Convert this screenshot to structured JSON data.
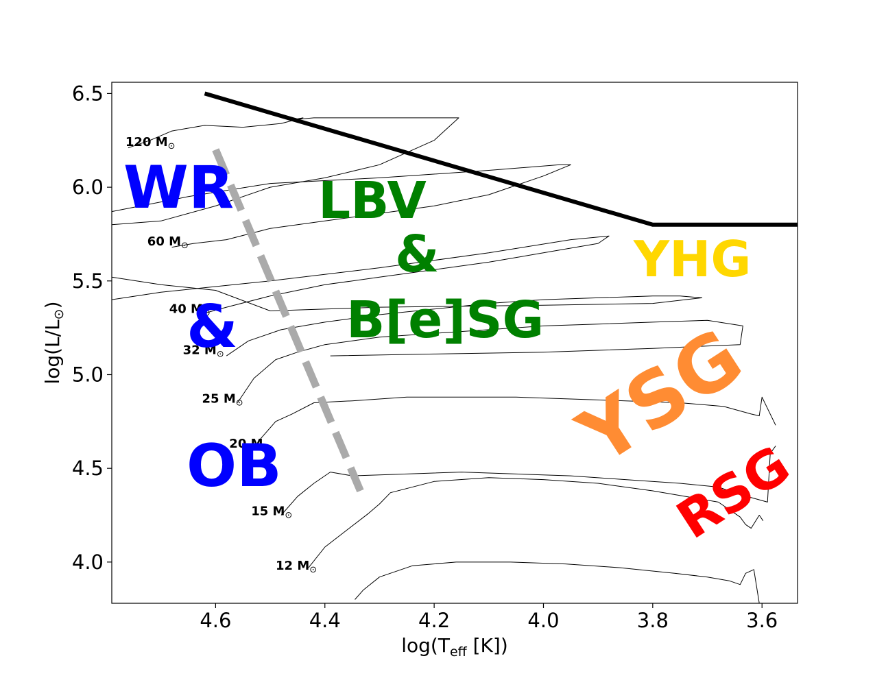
{
  "chart_data": {
    "type": "line",
    "title": "",
    "xlabel": {
      "main": "log(T",
      "sub": "eff",
      "tail": " [K])"
    },
    "ylabel": {
      "main": "log(L/L",
      "sym": "⊙",
      "tail": ")"
    },
    "xlim": [
      4.79,
      3.535
    ],
    "ylim": [
      3.78,
      6.56
    ],
    "xticks": [
      {
        "value": 4.6,
        "label": "4.6"
      },
      {
        "value": 4.4,
        "label": "4.4"
      },
      {
        "value": 4.2,
        "label": "4.2"
      },
      {
        "value": 4.0,
        "label": "4.0"
      },
      {
        "value": 3.8,
        "label": "3.8"
      },
      {
        "value": 3.6,
        "label": "3.6"
      }
    ],
    "yticks": [
      {
        "value": 4.0,
        "label": "4.0"
      },
      {
        "value": 4.5,
        "label": "4.5"
      },
      {
        "value": 5.0,
        "label": "5.0"
      },
      {
        "value": 5.5,
        "label": "5.5"
      },
      {
        "value": 6.0,
        "label": "6.0"
      },
      {
        "value": 6.5,
        "label": "6.5"
      }
    ],
    "grid": false,
    "colors": {
      "axes": "#000000",
      "tracks": "#000000",
      "hd_limit": "#000000",
      "zams_band": "#aaaaaa",
      "wr": "#0000ff",
      "lbv": "#008000",
      "yhg": "#ffd700",
      "ysg": "#ff8c33",
      "rsg": "#ff0000"
    },
    "hd_limit": {
      "x": [
        4.62,
        3.8,
        3.535
      ],
      "y": [
        6.5,
        5.8,
        5.8
      ]
    },
    "terminal_age_main_sequence_band": {
      "x": [
        4.6,
        4.335
      ],
      "y": [
        6.2,
        4.38
      ]
    },
    "tracks": [
      {
        "mass": "120",
        "x": [
          4.76,
          4.72,
          4.68,
          4.62,
          4.55,
          4.48,
          4.44,
          4.46,
          4.42,
          4.36,
          4.25,
          4.2,
          4.155,
          4.2,
          4.3,
          4.4,
          4.5,
          4.6,
          4.7,
          4.79
        ],
        "y": [
          6.21,
          6.25,
          6.3,
          6.33,
          6.32,
          6.34,
          6.37,
          6.36,
          6.37,
          6.37,
          6.37,
          6.37,
          6.37,
          6.25,
          6.12,
          6.05,
          6.0,
          5.9,
          5.82,
          5.8
        ]
      },
      {
        "mass": "60",
        "x": [
          4.68,
          4.64,
          4.58,
          4.5,
          4.4,
          4.3,
          4.2,
          4.1,
          4.0,
          3.95,
          3.97,
          4.1,
          4.3,
          4.5,
          4.65,
          4.79
        ],
        "y": [
          5.68,
          5.7,
          5.72,
          5.78,
          5.82,
          5.86,
          5.9,
          5.96,
          6.06,
          6.12,
          6.12,
          6.09,
          6.05,
          6.02,
          5.95,
          5.87
        ]
      },
      {
        "mass": "40",
        "x": [
          4.63,
          4.58,
          4.5,
          4.4,
          4.3,
          4.2,
          4.1,
          4.0,
          3.9,
          3.88,
          3.95,
          4.1,
          4.3,
          4.5,
          4.7,
          4.79
        ],
        "y": [
          5.32,
          5.36,
          5.42,
          5.48,
          5.52,
          5.56,
          5.6,
          5.65,
          5.7,
          5.74,
          5.72,
          5.65,
          5.57,
          5.5,
          5.44,
          5.4
        ]
      },
      {
        "mass": "32",
        "x": [
          4.58,
          4.54,
          4.48,
          4.4,
          4.3,
          4.2,
          4.1,
          4.0,
          3.9,
          3.8,
          3.75,
          3.71,
          3.8,
          4.0,
          4.3,
          4.5,
          4.6,
          4.7,
          4.79
        ],
        "y": [
          5.1,
          5.18,
          5.24,
          5.28,
          5.32,
          5.35,
          5.38,
          5.4,
          5.41,
          5.42,
          5.42,
          5.41,
          5.38,
          5.37,
          5.36,
          5.34,
          5.45,
          5.48,
          5.52
        ]
      },
      {
        "mass": "25",
        "x": [
          4.56,
          4.53,
          4.49,
          4.45,
          4.4,
          4.3,
          4.2,
          4.1,
          4.0,
          3.9,
          3.8,
          3.7,
          3.635,
          3.64,
          3.8,
          4.0,
          4.2,
          4.39
        ],
        "y": [
          4.85,
          4.98,
          5.08,
          5.12,
          5.16,
          5.2,
          5.22,
          5.24,
          5.26,
          5.27,
          5.28,
          5.29,
          5.26,
          5.16,
          5.14,
          5.12,
          5.11,
          5.1
        ]
      },
      {
        "mass": "20",
        "x": [
          4.52,
          4.49,
          4.46,
          4.42,
          4.35,
          4.25,
          4.15,
          4.05,
          3.95,
          3.85,
          3.75,
          3.67,
          3.62,
          3.605,
          3.6,
          3.575
        ],
        "y": [
          4.65,
          4.75,
          4.79,
          4.85,
          4.86,
          4.88,
          4.88,
          4.88,
          4.87,
          4.86,
          4.85,
          4.83,
          4.79,
          4.78,
          4.88,
          4.73
        ]
      },
      {
        "mass": "15",
        "x": [
          4.48,
          4.45,
          4.42,
          4.39,
          4.35,
          4.25,
          4.15,
          4.05,
          3.95,
          3.85,
          3.75,
          3.68,
          3.64,
          3.59,
          3.585,
          3.575
        ],
        "y": [
          4.25,
          4.35,
          4.42,
          4.48,
          4.46,
          4.47,
          4.48,
          4.47,
          4.46,
          4.44,
          4.42,
          4.4,
          4.36,
          4.32,
          4.58,
          4.62
        ]
      },
      {
        "mass": "12",
        "x": [
          4.43,
          4.4,
          4.36,
          4.32,
          4.3,
          4.28,
          4.2,
          4.1,
          4.0,
          3.9,
          3.8,
          3.72,
          3.68,
          3.66,
          3.64,
          3.63,
          3.62,
          3.605,
          3.598
        ],
        "y": [
          3.97,
          4.08,
          4.17,
          4.26,
          4.31,
          4.37,
          4.43,
          4.45,
          4.44,
          4.42,
          4.38,
          4.34,
          4.32,
          4.28,
          4.24,
          4.2,
          4.18,
          4.25,
          4.22
        ]
      },
      {
        "mass": "",
        "x": [
          4.345,
          4.33,
          4.3,
          4.24,
          4.16,
          4.06,
          3.96,
          3.86,
          3.76,
          3.7,
          3.66,
          3.64,
          3.63,
          3.615,
          3.605
        ],
        "y": [
          3.8,
          3.85,
          3.92,
          3.98,
          4.0,
          4.0,
          3.99,
          3.97,
          3.94,
          3.92,
          3.9,
          3.88,
          3.94,
          3.96,
          3.78
        ]
      }
    ],
    "mass_labels": [
      {
        "text": "120 M",
        "x": 4.765,
        "y": 6.22
      },
      {
        "text": "60 M",
        "x": 4.725,
        "y": 5.69
      },
      {
        "text": "40 M",
        "x": 4.685,
        "y": 5.33
      },
      {
        "text": "32 M",
        "x": 4.66,
        "y": 5.11
      },
      {
        "text": "25 M",
        "x": 4.625,
        "y": 4.85
      },
      {
        "text": "20 M",
        "x": 4.575,
        "y": 4.61
      },
      {
        "text": "15 M",
        "x": 4.535,
        "y": 4.25
      },
      {
        "text": "12 M",
        "x": 4.49,
        "y": 3.96
      }
    ],
    "mass_label_symbol": "⊙",
    "regions": [
      {
        "id": "wr",
        "text": "WR",
        "color": "#0000ff"
      },
      {
        "id": "amp1",
        "text": "&",
        "color": "#0000ff"
      },
      {
        "id": "ob",
        "text": "OB",
        "color": "#0000ff"
      },
      {
        "id": "lbv",
        "text": "LBV",
        "color": "#008000"
      },
      {
        "id": "amp2",
        "text": "&",
        "color": "#008000"
      },
      {
        "id": "bsg",
        "text": "B[e]SG",
        "color": "#008000"
      },
      {
        "id": "yhg",
        "text": "YHG",
        "color": "#ffd700"
      },
      {
        "id": "ysg",
        "text": "YSG",
        "color": "#ff8c33"
      },
      {
        "id": "rsg",
        "text": "RSG",
        "color": "#ff0000"
      }
    ]
  }
}
